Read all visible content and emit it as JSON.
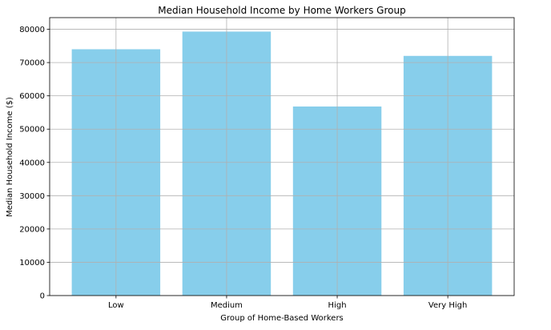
{
  "chart_data": {
    "type": "bar",
    "title": "Median Household Income by Home Workers Group",
    "xlabel": "Group of Home-Based Workers",
    "ylabel": "Median Household Income ($)",
    "categories": [
      "Low",
      "Medium",
      "High",
      "Very High"
    ],
    "values": [
      74000,
      79300,
      56800,
      72000
    ],
    "ylim": [
      0,
      83500
    ],
    "yticks": [
      0,
      10000,
      20000,
      30000,
      40000,
      50000,
      60000,
      70000,
      80000
    ],
    "ytick_labels": [
      "0",
      "10000",
      "20000",
      "30000",
      "40000",
      "50000",
      "60000",
      "70000",
      "80000"
    ],
    "grid": true,
    "bar_color": "#87CEEB",
    "grid_color": "#b0b0b0",
    "axis_color": "#000000"
  }
}
